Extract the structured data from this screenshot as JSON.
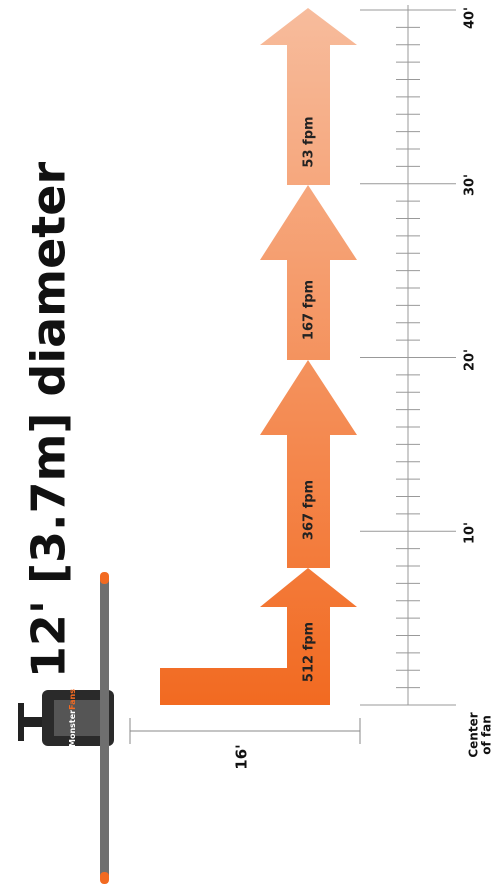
{
  "title": "12' [3.7m] diameter",
  "fan": {
    "brand": "Monster",
    "brand_accent": "Fans"
  },
  "dimension": "16'",
  "arrows": [
    "512 fpm",
    "367 fpm",
    "167 fpm",
    "53 fpm"
  ],
  "ruler": {
    "origin_label": [
      "Center",
      "of fan"
    ],
    "labels": [
      "10'",
      "20'",
      "30'",
      "40'"
    ]
  }
}
